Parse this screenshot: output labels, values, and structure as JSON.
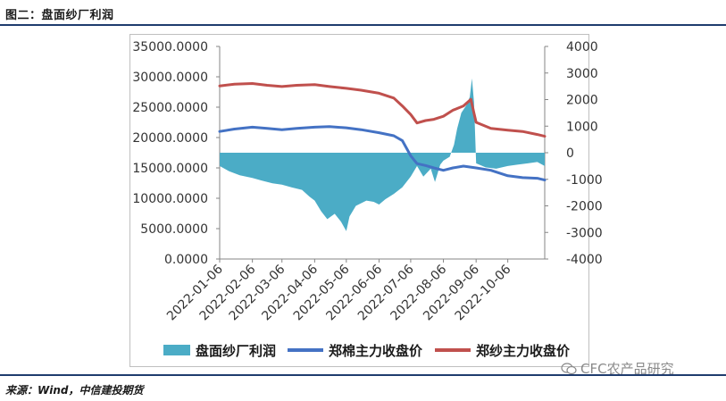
{
  "figure": {
    "title": "图二：盘面纱厂利润",
    "source": "来源：Wind，中信建投期货",
    "watermark": "CFC农产品研究"
  },
  "chart_data": {
    "type": "line",
    "left_axis": {
      "min": 0,
      "max": 35000,
      "ticks": [
        "0.0000",
        "5000.0000",
        "10000.0000",
        "15000.0000",
        "20000.0000",
        "25000.0000",
        "30000.0000",
        "35000.0000"
      ]
    },
    "right_axis": {
      "min": -4000,
      "max": 4000,
      "ticks": [
        "-4000",
        "-3000",
        "-2000",
        "-1000",
        "0",
        "1000",
        "2000",
        "3000",
        "4000"
      ]
    },
    "x_dates": [
      "2022-01-06",
      "2022-02-06",
      "2022-03-06",
      "2022-04-06",
      "2022-05-06",
      "2022-06-06",
      "2022-07-06",
      "2022-08-06",
      "2022-09-06",
      "2022-10-06"
    ],
    "x_range": [
      "2022-01-06",
      "2022-11-10"
    ],
    "grid": false,
    "legend_position": "bottom",
    "series": [
      {
        "name": "盘面纱厂利润",
        "kind": "area",
        "axis": "right",
        "color": "#4bacc6",
        "points": [
          [
            "2022-01-06",
            -500
          ],
          [
            "2022-01-15",
            -700
          ],
          [
            "2022-01-25",
            -850
          ],
          [
            "2022-02-06",
            -950
          ],
          [
            "2022-02-15",
            -1050
          ],
          [
            "2022-02-25",
            -1150
          ],
          [
            "2022-03-06",
            -1200
          ],
          [
            "2022-03-15",
            -1300
          ],
          [
            "2022-03-25",
            -1400
          ],
          [
            "2022-04-01",
            -1650
          ],
          [
            "2022-04-06",
            -1800
          ],
          [
            "2022-04-12",
            -2200
          ],
          [
            "2022-04-18",
            -2500
          ],
          [
            "2022-04-25",
            -2300
          ],
          [
            "2022-05-01",
            -2600
          ],
          [
            "2022-05-06",
            -2950
          ],
          [
            "2022-05-09",
            -2400
          ],
          [
            "2022-05-15",
            -2000
          ],
          [
            "2022-05-25",
            -1800
          ],
          [
            "2022-06-01",
            -1850
          ],
          [
            "2022-06-06",
            -1950
          ],
          [
            "2022-06-12",
            -1750
          ],
          [
            "2022-06-20",
            -1550
          ],
          [
            "2022-06-28",
            -1300
          ],
          [
            "2022-07-06",
            -900
          ],
          [
            "2022-07-12",
            -500
          ],
          [
            "2022-07-18",
            -900
          ],
          [
            "2022-07-25",
            -600
          ],
          [
            "2022-07-29",
            -1100
          ],
          [
            "2022-08-03",
            -450
          ],
          [
            "2022-08-06",
            -300
          ],
          [
            "2022-08-12",
            -150
          ],
          [
            "2022-08-16",
            300
          ],
          [
            "2022-08-19",
            900
          ],
          [
            "2022-08-23",
            1500
          ],
          [
            "2022-08-28",
            1800
          ],
          [
            "2022-08-31",
            2100
          ],
          [
            "2022-09-02",
            2800
          ],
          [
            "2022-09-04",
            1900
          ],
          [
            "2022-09-06",
            -400
          ],
          [
            "2022-09-15",
            -550
          ],
          [
            "2022-09-25",
            -600
          ],
          [
            "2022-10-06",
            -500
          ],
          [
            "2022-10-15",
            -450
          ],
          [
            "2022-10-25",
            -400
          ],
          [
            "2022-11-03",
            -350
          ],
          [
            "2022-11-10",
            -500
          ]
        ]
      },
      {
        "name": "郑棉主力收盘价",
        "kind": "line",
        "axis": "left",
        "color": "#4472c4",
        "points": [
          [
            "2022-01-06",
            21000
          ],
          [
            "2022-01-20",
            21400
          ],
          [
            "2022-02-06",
            21700
          ],
          [
            "2022-02-20",
            21500
          ],
          [
            "2022-03-06",
            21300
          ],
          [
            "2022-03-20",
            21500
          ],
          [
            "2022-04-06",
            21700
          ],
          [
            "2022-04-20",
            21800
          ],
          [
            "2022-05-06",
            21600
          ],
          [
            "2022-05-20",
            21300
          ],
          [
            "2022-06-06",
            20800
          ],
          [
            "2022-06-20",
            20300
          ],
          [
            "2022-06-28",
            19500
          ],
          [
            "2022-07-06",
            17000
          ],
          [
            "2022-07-12",
            15700
          ],
          [
            "2022-07-20",
            15400
          ],
          [
            "2022-07-28",
            15000
          ],
          [
            "2022-08-06",
            14600
          ],
          [
            "2022-08-15",
            15000
          ],
          [
            "2022-08-25",
            15300
          ],
          [
            "2022-09-06",
            15000
          ],
          [
            "2022-09-20",
            14600
          ],
          [
            "2022-10-06",
            13700
          ],
          [
            "2022-10-20",
            13400
          ],
          [
            "2022-11-03",
            13300
          ],
          [
            "2022-11-10",
            13000
          ]
        ]
      },
      {
        "name": "郑纱主力收盘价",
        "kind": "line",
        "axis": "left",
        "color": "#c0504d",
        "points": [
          [
            "2022-01-06",
            28500
          ],
          [
            "2022-01-20",
            28800
          ],
          [
            "2022-02-06",
            28900
          ],
          [
            "2022-02-20",
            28600
          ],
          [
            "2022-03-06",
            28400
          ],
          [
            "2022-03-20",
            28600
          ],
          [
            "2022-04-06",
            28700
          ],
          [
            "2022-04-20",
            28400
          ],
          [
            "2022-05-06",
            28100
          ],
          [
            "2022-05-20",
            27800
          ],
          [
            "2022-06-06",
            27300
          ],
          [
            "2022-06-20",
            26500
          ],
          [
            "2022-06-28",
            25200
          ],
          [
            "2022-07-06",
            23800
          ],
          [
            "2022-07-12",
            22400
          ],
          [
            "2022-07-20",
            22800
          ],
          [
            "2022-07-28",
            23000
          ],
          [
            "2022-08-06",
            23500
          ],
          [
            "2022-08-15",
            24500
          ],
          [
            "2022-08-25",
            25200
          ],
          [
            "2022-09-01",
            26300
          ],
          [
            "2022-09-04",
            24000
          ],
          [
            "2022-09-06",
            22500
          ],
          [
            "2022-09-20",
            21500
          ],
          [
            "2022-10-06",
            21200
          ],
          [
            "2022-10-20",
            21000
          ],
          [
            "2022-11-03",
            20500
          ],
          [
            "2022-11-10",
            20200
          ]
        ]
      }
    ]
  }
}
